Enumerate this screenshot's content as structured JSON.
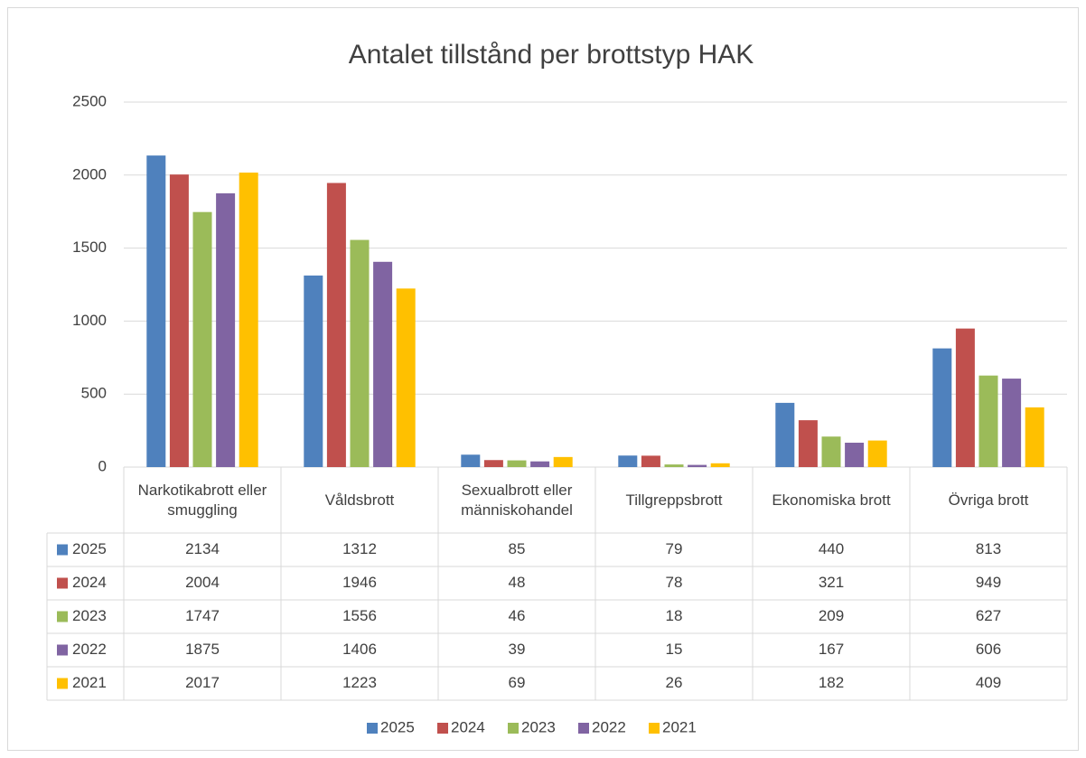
{
  "chart_data": {
    "type": "bar",
    "title": "Antalet tillstånd per brottstyp HAK",
    "categories": [
      "Narkotikabrott eller smuggling",
      "Våldsbrott",
      "Sexualbrott eller människohandel",
      "Tillgreppsbrott",
      "Ekonomiska brott",
      "Övriga brott"
    ],
    "series": [
      {
        "name": "2025",
        "color": "#4f81bd",
        "values": [
          2134,
          1312,
          85,
          79,
          440,
          813
        ]
      },
      {
        "name": "2024",
        "color": "#c0504d",
        "values": [
          2004,
          1946,
          48,
          78,
          321,
          949
        ]
      },
      {
        "name": "2023",
        "color": "#9bbb59",
        "values": [
          1747,
          1556,
          46,
          18,
          209,
          627
        ]
      },
      {
        "name": "2022",
        "color": "#8064a2",
        "values": [
          1875,
          1406,
          39,
          15,
          167,
          606
        ]
      },
      {
        "name": "2021",
        "color": "#ffc000",
        "values": [
          2017,
          1223,
          69,
          26,
          182,
          409
        ]
      }
    ],
    "ylim": [
      0,
      2500
    ],
    "yticks": [
      0,
      500,
      1000,
      1500,
      2000,
      2500
    ],
    "grid": true,
    "legend": "bottom"
  }
}
